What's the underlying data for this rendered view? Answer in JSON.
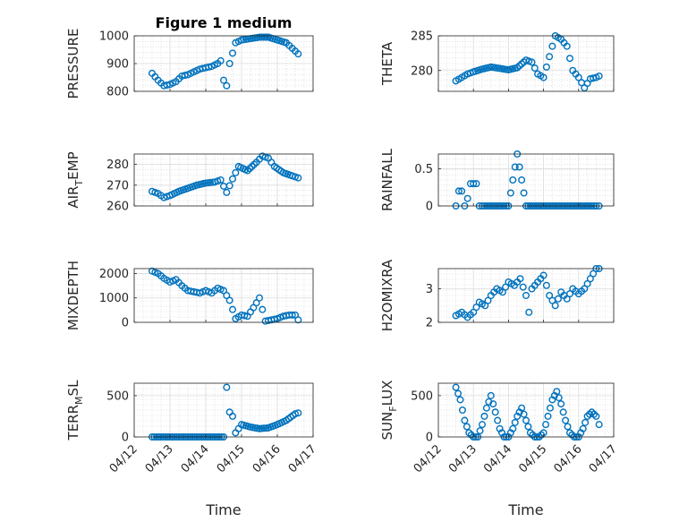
{
  "chart_data": [
    {
      "type": "scatter",
      "title": "Figure 1 medium",
      "ylabel": "PRESSURE",
      "xlabel": "",
      "ylim": [
        800,
        1000
      ],
      "yticks": [
        "800",
        "900",
        "1000"
      ],
      "x_range": [
        "04/12",
        "04/17"
      ],
      "grid": true,
      "series": [
        {
          "x": [
            "04/12 12:00",
            "04/12 16:00",
            "04/12 20:00",
            "04/13 00:00",
            "04/13 04:00",
            "04/13 08:00",
            "04/13 12:00",
            "04/13 16:00",
            "04/13 20:00",
            "04/14 00:00",
            "04/14 04:00",
            "04/14 08:00",
            "04/14 10:00",
            "04/14 12:00",
            "04/14 14:00",
            "04/14 16:00",
            "04/14 20:00",
            "04/15 00:00",
            "04/15 06:00",
            "04/15 12:00",
            "04/15 18:00",
            "04/16 00:00",
            "04/16 06:00",
            "04/16 10:00",
            "04/16 14:00"
          ],
          "y": [
            865,
            840,
            820,
            825,
            835,
            855,
            860,
            870,
            880,
            885,
            890,
            900,
            910,
            840,
            820,
            900,
            975,
            985,
            990,
            995,
            995,
            985,
            975,
            955,
            935
          ]
        }
      ]
    },
    {
      "type": "scatter",
      "title": "",
      "ylabel": "THETA",
      "xlabel": "",
      "ylim": [
        277,
        285
      ],
      "yticks": [
        "280",
        "285"
      ],
      "x_range": [
        "04/12",
        "04/17"
      ],
      "grid": true,
      "series": [
        {
          "x": [
            "04/12 12:00",
            "04/12 16:00",
            "04/12 20:00",
            "04/13 00:00",
            "04/13 06:00",
            "04/13 12:00",
            "04/13 18:00",
            "04/14 00:00",
            "04/14 06:00",
            "04/14 12:00",
            "04/14 16:00",
            "04/14 20:00",
            "04/15 00:00",
            "04/15 04:00",
            "04/15 08:00",
            "04/15 12:00",
            "04/15 16:00",
            "04/15 20:00",
            "04/16 00:00",
            "04/16 04:00",
            "04/16 08:00",
            "04/16 12:00",
            "04/16 14:00"
          ],
          "y": [
            278.5,
            279,
            279.5,
            279.8,
            280.2,
            280.5,
            280.3,
            280.1,
            280.4,
            281.5,
            281.2,
            279.5,
            279,
            282,
            285,
            284.5,
            283.5,
            280,
            279,
            277.5,
            278.8,
            279,
            279.2
          ]
        }
      ]
    },
    {
      "type": "scatter",
      "title": "",
      "ylabel": "AIR_TEMP",
      "xlabel": "",
      "ylim": [
        260,
        285
      ],
      "yticks": [
        "260",
        "270",
        "280"
      ],
      "x_range": [
        "04/12",
        "04/17"
      ],
      "grid": true,
      "series": [
        {
          "x": [
            "04/12 12:00",
            "04/12 16:00",
            "04/12 20:00",
            "04/13 00:00",
            "04/13 06:00",
            "04/13 12:00",
            "04/13 18:00",
            "04/14 00:00",
            "04/14 06:00",
            "04/14 10:00",
            "04/14 14:00",
            "04/14 18:00",
            "04/14 22:00",
            "04/15 04:00",
            "04/15 10:00",
            "04/15 14:00",
            "04/15 18:00",
            "04/15 22:00",
            "04/16 04:00",
            "04/16 10:00",
            "04/16 14:00"
          ],
          "y": [
            267,
            266,
            264,
            265,
            267,
            268.5,
            270,
            271,
            271.5,
            272.5,
            266.5,
            273,
            279,
            277,
            281,
            284,
            283,
            279,
            276,
            274.5,
            273.5
          ]
        }
      ]
    },
    {
      "type": "scatter",
      "title": "",
      "ylabel": "RAINFALL",
      "xlabel": "",
      "ylim": [
        0,
        0.7
      ],
      "yticks": [
        "0",
        "0.5"
      ],
      "x_range": [
        "04/12",
        "04/17"
      ],
      "grid": true,
      "series": [
        {
          "x": [
            "04/12 12:00",
            "04/12 14:00",
            "04/12 16:00",
            "04/12 18:00",
            "04/12 20:00",
            "04/12 22:00",
            "04/13 00:00",
            "04/13 02:00",
            "04/13 04:00",
            "04/13 06:00",
            "04/13 12:00",
            "04/13 18:00",
            "04/14 00:00",
            "04/14 06:00",
            "04/14 12:00",
            "04/14 18:00",
            "04/15 00:00",
            "04/15 06:00",
            "04/15 12:00",
            "04/15 18:00",
            "04/16 00:00",
            "04/16 06:00",
            "04/16 12:00",
            "04/16 14:00"
          ],
          "y": [
            0,
            0.2,
            0.2,
            0,
            0.1,
            0.3,
            0.3,
            0.3,
            0,
            0,
            0,
            0,
            0,
            0.7,
            0,
            0,
            0,
            0,
            0,
            0,
            0,
            0,
            0,
            0
          ]
        }
      ]
    },
    {
      "type": "scatter",
      "title": "",
      "ylabel": "MIXDEPTH",
      "xlabel": "",
      "ylim": [
        0,
        2200
      ],
      "yticks": [
        "0",
        "1000",
        "2000"
      ],
      "x_range": [
        "04/12",
        "04/17"
      ],
      "grid": true,
      "series": [
        {
          "x": [
            "04/12 12:00",
            "04/12 16:00",
            "04/12 20:00",
            "04/13 00:00",
            "04/13 04:00",
            "04/13 08:00",
            "04/13 12:00",
            "04/13 16:00",
            "04/13 20:00",
            "04/14 00:00",
            "04/14 04:00",
            "04/14 08:00",
            "04/14 12:00",
            "04/14 16:00",
            "04/14 20:00",
            "04/15 00:00",
            "04/15 04:00",
            "04/15 08:00",
            "04/15 12:00",
            "04/15 16:00",
            "04/15 20:00",
            "04/16 00:00",
            "04/16 04:00",
            "04/16 08:00",
            "04/16 12:00",
            "04/16 14:00"
          ],
          "y": [
            2100,
            2000,
            1800,
            1650,
            1750,
            1500,
            1300,
            1250,
            1200,
            1300,
            1200,
            1400,
            1300,
            900,
            150,
            300,
            250,
            600,
            1000,
            50,
            100,
            150,
            250,
            300,
            300,
            100
          ]
        }
      ]
    },
    {
      "type": "scatter",
      "title": "",
      "ylabel": "H2OMIXRA",
      "xlabel": "",
      "ylim": [
        2,
        3.6
      ],
      "yticks": [
        "2",
        "3"
      ],
      "x_range": [
        "04/12",
        "04/17"
      ],
      "grid": true,
      "series": [
        {
          "x": [
            "04/12 12:00",
            "04/12 16:00",
            "04/12 20:00",
            "04/13 00:00",
            "04/13 04:00",
            "04/13 08:00",
            "04/13 12:00",
            "04/13 16:00",
            "04/13 20:00",
            "04/14 00:00",
            "04/14 04:00",
            "04/14 08:00",
            "04/14 12:00",
            "04/14 14:00",
            "04/14 16:00",
            "04/14 20:00",
            "04/15 00:00",
            "04/15 04:00",
            "04/15 08:00",
            "04/15 12:00",
            "04/15 16:00",
            "04/15 20:00",
            "04/16 00:00",
            "04/16 04:00",
            "04/16 08:00",
            "04/16 12:00",
            "04/16 14:00"
          ],
          "y": [
            2.2,
            2.3,
            2.15,
            2.3,
            2.6,
            2.5,
            2.8,
            3.0,
            2.9,
            3.2,
            3.1,
            3.3,
            2.8,
            2.3,
            3.0,
            3.2,
            3.4,
            2.8,
            2.5,
            2.9,
            2.7,
            3.0,
            2.85,
            3.0,
            3.3,
            3.6,
            3.6
          ]
        }
      ]
    },
    {
      "type": "scatter",
      "title": "",
      "ylabel": "TERR_MSL",
      "xlabel": "",
      "ylim": [
        0,
        650
      ],
      "yticks": [
        "0",
        "500"
      ],
      "x_range": [
        "04/12",
        "04/17"
      ],
      "grid": true,
      "series": [
        {
          "x": [
            "04/12 12:00",
            "04/12 18:00",
            "04/13 00:00",
            "04/13 06:00",
            "04/13 12:00",
            "04/13 18:00",
            "04/14 00:00",
            "04/14 06:00",
            "04/14 12:00",
            "04/14 14:00",
            "04/14 16:00",
            "04/14 18:00",
            "04/14 20:00",
            "04/14 22:00",
            "04/15 00:00",
            "04/15 06:00",
            "04/15 12:00",
            "04/15 18:00",
            "04/16 00:00",
            "04/16 06:00",
            "04/16 12:00",
            "04/16 14:00"
          ],
          "y": [
            0,
            0,
            0,
            0,
            0,
            0,
            0,
            0,
            0,
            600,
            300,
            250,
            50,
            100,
            150,
            120,
            100,
            110,
            150,
            200,
            280,
            290
          ]
        }
      ]
    },
    {
      "type": "scatter",
      "title": "",
      "ylabel": "SUN_FLUX",
      "xlabel": "",
      "ylim": [
        0,
        650
      ],
      "yticks": [
        "0",
        "500"
      ],
      "x_range": [
        "04/12",
        "04/17"
      ],
      "grid": true,
      "series": [
        {
          "x": [
            "04/12 12:00",
            "04/12 15:00",
            "04/12 18:00",
            "04/12 21:00",
            "04/13 00:00",
            "04/13 03:00",
            "04/13 06:00",
            "04/13 09:00",
            "04/13 12:00",
            "04/13 15:00",
            "04/13 18:00",
            "04/13 21:00",
            "04/14 00:00",
            "04/14 03:00",
            "04/14 06:00",
            "04/14 09:00",
            "04/14 12:00",
            "04/14 15:00",
            "04/14 18:00",
            "04/14 21:00",
            "04/15 00:00",
            "04/15 03:00",
            "04/15 06:00",
            "04/15 09:00",
            "04/15 12:00",
            "04/15 15:00",
            "04/15 18:00",
            "04/15 21:00",
            "04/16 00:00",
            "04/16 03:00",
            "04/16 06:00",
            "04/16 09:00",
            "04/16 12:00",
            "04/16 14:00"
          ],
          "y": [
            600,
            450,
            200,
            50,
            0,
            0,
            150,
            350,
            500,
            300,
            100,
            0,
            0,
            100,
            250,
            350,
            200,
            50,
            0,
            0,
            50,
            250,
            450,
            550,
            400,
            200,
            50,
            0,
            0,
            100,
            250,
            300,
            250,
            150
          ]
        }
      ]
    }
  ],
  "axes_common": {
    "xtick_labels": [
      "04/12",
      "04/13",
      "04/14",
      "04/15",
      "04/16",
      "04/17"
    ],
    "xlabel": "Time"
  }
}
